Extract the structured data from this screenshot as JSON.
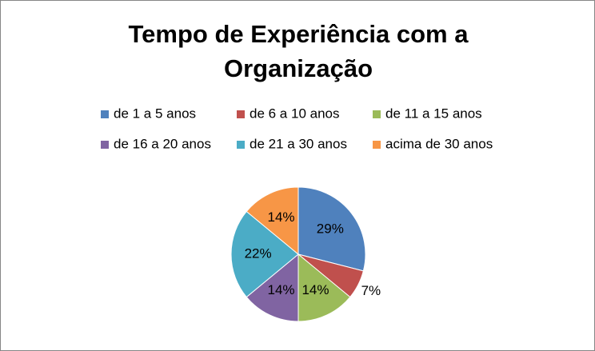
{
  "chart_data": {
    "type": "pie",
    "title": "Tempo de Experiência com a Organização",
    "categories": [
      "de 1 a 5 anos",
      "de 6 a 10 anos",
      "de 11 a 15 anos",
      "de 16 a 20 anos",
      "de 21 a 30 anos",
      "acima de 30 anos"
    ],
    "values": [
      29,
      7,
      14,
      14,
      22,
      14
    ],
    "value_labels": [
      "29%",
      "7%",
      "14%",
      "14%",
      "22%",
      "14%"
    ],
    "colors": [
      "#4F81BD",
      "#C0504D",
      "#9BBB59",
      "#8064A2",
      "#4BACC6",
      "#F79646"
    ],
    "legend": "top"
  }
}
